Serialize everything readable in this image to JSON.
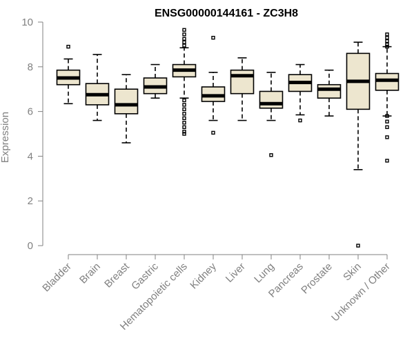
{
  "chart_data": {
    "type": "boxplot",
    "title": "ENSG00000144161 - ZC3H8",
    "ylabel": "Expression",
    "xlabel": "",
    "ylim": [
      0,
      10
    ],
    "yticks": [
      0,
      2,
      4,
      6,
      8,
      10
    ],
    "grid": false,
    "box_fill": "#ede6cf",
    "categories": [
      "Bladder",
      "Brain",
      "Breast",
      "Gastric",
      "Hematopoietic cells",
      "Kidney",
      "Liver",
      "Lung",
      "Pancreas",
      "Prostate",
      "Skin",
      "Unknown / Other"
    ],
    "boxes": [
      {
        "category": "Bladder",
        "whisker_low": 6.35,
        "q1": 7.2,
        "median": 7.5,
        "q3": 7.85,
        "whisker_high": 8.35,
        "outliers": [
          8.9
        ]
      },
      {
        "category": "Brain",
        "whisker_low": 5.6,
        "q1": 6.3,
        "median": 6.75,
        "q3": 7.25,
        "whisker_high": 8.55,
        "outliers": []
      },
      {
        "category": "Breast",
        "whisker_low": 4.6,
        "q1": 5.9,
        "median": 6.3,
        "q3": 7.0,
        "whisker_high": 7.65,
        "outliers": []
      },
      {
        "category": "Gastric",
        "whisker_low": 6.6,
        "q1": 6.8,
        "median": 7.1,
        "q3": 7.5,
        "whisker_high": 8.1,
        "outliers": []
      },
      {
        "category": "Hematopoietic cells",
        "whisker_low": 6.6,
        "q1": 7.55,
        "median": 7.85,
        "q3": 8.1,
        "whisker_high": 8.85,
        "outliers": [
          9.65,
          9.45,
          9.25,
          9.1,
          8.95,
          6.5,
          6.3,
          6.1,
          5.9,
          5.7,
          5.5,
          5.3,
          5.1,
          5.0
        ]
      },
      {
        "category": "Kidney",
        "whisker_low": 5.6,
        "q1": 6.45,
        "median": 6.7,
        "q3": 7.1,
        "whisker_high": 7.75,
        "outliers": [
          9.3,
          5.05
        ]
      },
      {
        "category": "Liver",
        "whisker_low": 5.6,
        "q1": 6.8,
        "median": 7.6,
        "q3": 7.85,
        "whisker_high": 8.4,
        "outliers": []
      },
      {
        "category": "Lung",
        "whisker_low": 5.6,
        "q1": 6.15,
        "median": 6.35,
        "q3": 6.9,
        "whisker_high": 7.75,
        "outliers": [
          4.05
        ]
      },
      {
        "category": "Pancreas",
        "whisker_low": 5.85,
        "q1": 6.9,
        "median": 7.3,
        "q3": 7.65,
        "whisker_high": 8.1,
        "outliers": [
          5.6
        ]
      },
      {
        "category": "Prostate",
        "whisker_low": 5.8,
        "q1": 6.6,
        "median": 7.0,
        "q3": 7.2,
        "whisker_high": 7.85,
        "outliers": []
      },
      {
        "category": "Skin",
        "whisker_low": 3.4,
        "q1": 6.1,
        "median": 7.35,
        "q3": 8.6,
        "whisker_high": 9.1,
        "outliers": [
          0.0
        ]
      },
      {
        "category": "Unknown / Other",
        "whisker_low": 5.8,
        "q1": 6.95,
        "median": 7.4,
        "q3": 7.7,
        "whisker_high": 8.9,
        "outliers": [
          9.45,
          9.3,
          9.15,
          9.0,
          8.9,
          5.8,
          5.55,
          5.3,
          4.85,
          3.8
        ]
      }
    ]
  }
}
